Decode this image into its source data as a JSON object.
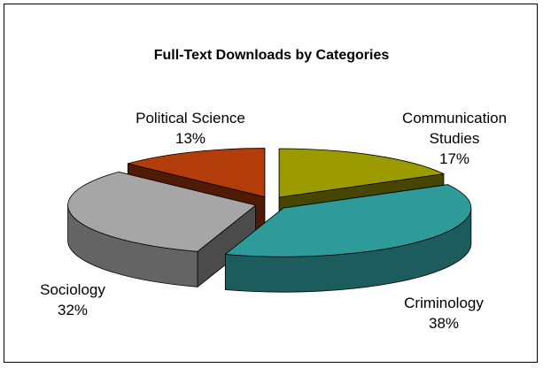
{
  "chart_data": {
    "type": "pie",
    "style": "3d-exploded",
    "title": "Full-Text Downloads by Categories",
    "legend": "none",
    "slices": [
      {
        "label": "Communication Studies",
        "label_lines": [
          "Communication",
          "Studies"
        ],
        "value": 17,
        "percent_label": "17%",
        "color": "#9b9b00"
      },
      {
        "label": "Criminology",
        "label_lines": [
          "Criminology"
        ],
        "value": 38,
        "percent_label": "38%",
        "color": "#2f9a9a"
      },
      {
        "label": "Sociology",
        "label_lines": [
          "Sociology"
        ],
        "value": 32,
        "percent_label": "32%",
        "color": "#a6a6a6"
      },
      {
        "label": "Political Science",
        "label_lines": [
          "Political Science"
        ],
        "value": 13,
        "percent_label": "13%",
        "color": "#b23c0a"
      }
    ]
  }
}
